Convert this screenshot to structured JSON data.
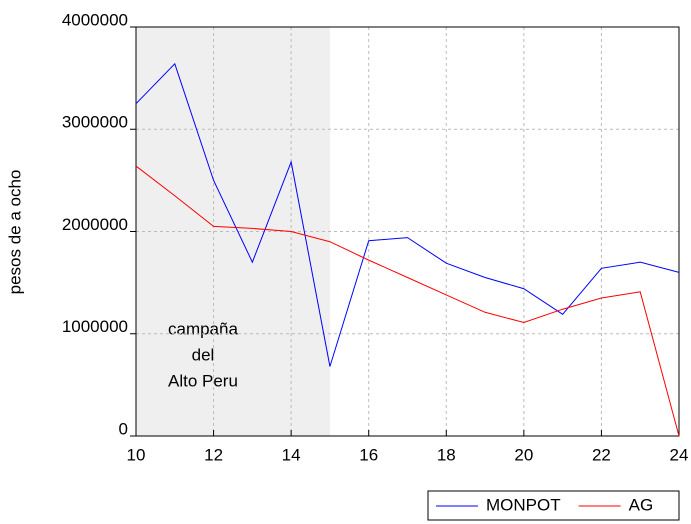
{
  "chart_data": {
    "type": "line",
    "y_label": "pesos de a ocho",
    "x": [
      10,
      11,
      12,
      13,
      14,
      15,
      16,
      17,
      18,
      19,
      20,
      21,
      22,
      23,
      24
    ],
    "series": [
      {
        "name": "MONPOT",
        "color": "#0000ff",
        "values": [
          3250000,
          3640000,
          2500000,
          1700000,
          2680000,
          680000,
          1910000,
          1940000,
          1690000,
          1550000,
          1440000,
          1190000,
          1640000,
          1700000,
          1600000
        ]
      },
      {
        "name": "AG",
        "color": "#ff0000",
        "values": [
          2640000,
          2350000,
          2050000,
          2030000,
          2000000,
          1900000,
          1720000,
          1550000,
          1380000,
          1210000,
          1110000,
          1240000,
          1350000,
          1410000,
          0
        ]
      }
    ],
    "xlim": [
      10,
      24
    ],
    "xticks": [
      10,
      12,
      14,
      16,
      18,
      20,
      22,
      24
    ],
    "ylim": [
      0,
      4000000
    ],
    "yticks": [
      0,
      1000000,
      2000000,
      3000000,
      4000000
    ],
    "grid": true,
    "shaded_region": {
      "xrange": [
        10,
        15
      ],
      "color": "#efefef",
      "label": [
        "campaña",
        "del",
        "Alto Peru"
      ]
    },
    "legend": "bottom-right"
  }
}
